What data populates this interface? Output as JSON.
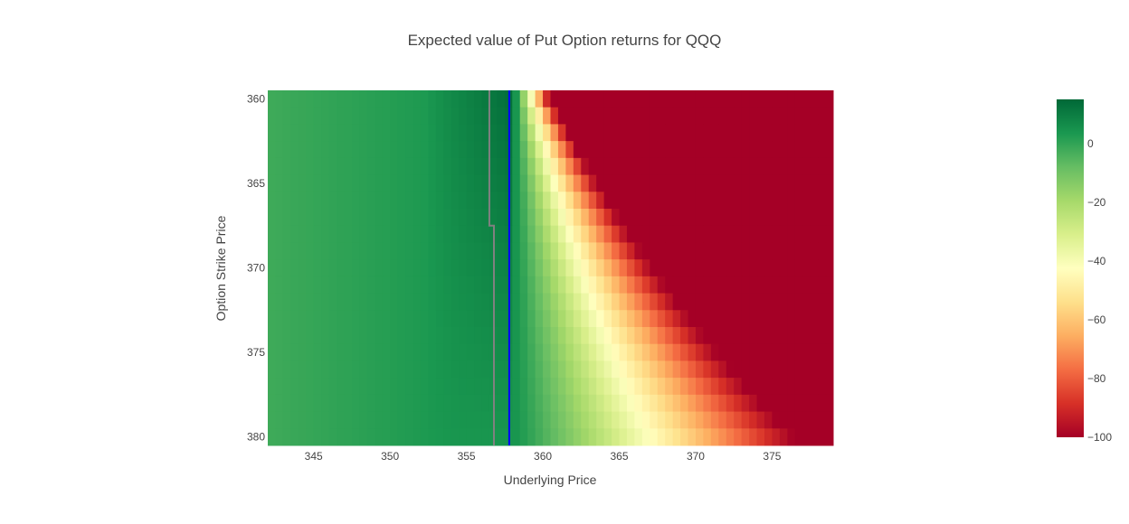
{
  "chart_data": {
    "type": "heatmap",
    "title": "Expected value of Put Option returns for QQQ",
    "xlabel": "Underlying Price",
    "ylabel": "Option Strike Price",
    "x_range": [
      342,
      379
    ],
    "y_range": [
      359.5,
      380.5
    ],
    "y_reversed": true,
    "x_ticks": [
      345,
      350,
      355,
      360,
      365,
      370,
      375
    ],
    "y_ticks": [
      360,
      365,
      370,
      375,
      380
    ],
    "grid": true,
    "plot_background": "#e5ecf6",
    "cells": {
      "x_start": 342,
      "x_end": 379,
      "x_step": 0.5,
      "strikes_start": 360,
      "strikes_end": 380,
      "strike_step": 1,
      "value_profile": {
        "green_base_far": -2,
        "green_base_near": 4,
        "green_peak": 14,
        "breakeven_offset": 0.8,
        "loss_floor": -100
      }
    },
    "reference_lines": [
      {
        "name": "current-price",
        "x": 357.8,
        "color": "#0000ff"
      },
      {
        "name": "breakeven",
        "points": [
          [
            356.5,
            359.5
          ],
          [
            356.5,
            367.5
          ],
          [
            356.8,
            367.5
          ],
          [
            356.8,
            380.5
          ]
        ],
        "color": "#808080"
      }
    ],
    "colorbar": {
      "colorscale": "RdYlGn",
      "min": -100,
      "max": 15,
      "tick_values": [
        0,
        -20,
        -40,
        -60,
        -80,
        -100
      ],
      "tick_labels": [
        "0",
        "−20",
        "−40",
        "−60",
        "−80",
        "−100"
      ]
    }
  }
}
